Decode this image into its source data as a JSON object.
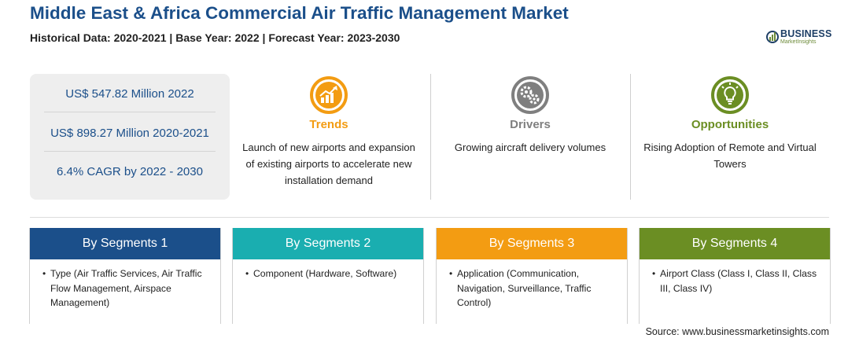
{
  "header": {
    "title": "Middle East & Africa Commercial Air Traffic Management Market",
    "subtitle": "Historical Data: 2020-2021 | Base Year: 2022 | Forecast Year: 2023-2030"
  },
  "logo": {
    "name": "BUSINESS",
    "tagline": "MarketInsights"
  },
  "stats": [
    "US$ 547.82 Million 2022",
    "US$ 898.27 Million 2020-2021",
    "6.4% CAGR by 2022 - 2030"
  ],
  "features": [
    {
      "title": "Trends",
      "text": "Launch of new airports and expansion of existing airports to accelerate new installation demand",
      "color": "#f39c12",
      "icon": "chart-up-icon"
    },
    {
      "title": "Drivers",
      "text": "Growing aircraft delivery volumes",
      "color": "#7f7f7f",
      "icon": "gears-icon"
    },
    {
      "title": "Opportunities",
      "text": "Rising Adoption of Remote and Virtual Towers",
      "color": "#6b8e23",
      "icon": "lightbulb-icon"
    }
  ],
  "segments": [
    {
      "title": "By Segments 1",
      "text": "Type (Air Traffic Services, Air Traffic Flow Management, Airspace Management)",
      "color": "#1b4f8a"
    },
    {
      "title": "By Segments 2",
      "text": "Component (Hardware, Software)",
      "color": "#1aaeb0"
    },
    {
      "title": "By Segments 3",
      "text": "Application (Communication, Navigation, Surveillance, Traffic Control)",
      "color": "#f39c12"
    },
    {
      "title": "By Segments 4",
      "text": "Airport Class (Class I, Class II, Class III, Class IV)",
      "color": "#6b8e23"
    }
  ],
  "source": "Source: www.businessmarketinsights.com",
  "bullet": "•"
}
